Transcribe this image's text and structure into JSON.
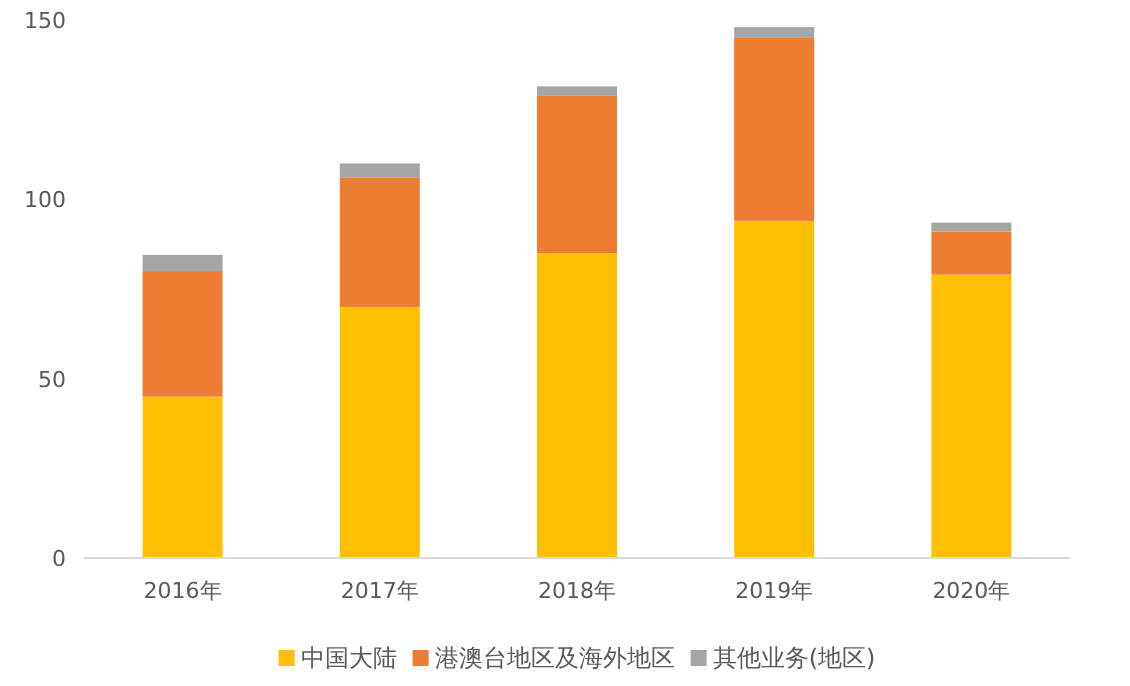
{
  "chart_data": {
    "type": "bar",
    "stacked": true,
    "categories": [
      "2016年",
      "2017年",
      "2018年",
      "2019年",
      "2020年"
    ],
    "series": [
      {
        "name": "中国大陆",
        "color": "#ffc000",
        "values": [
          45,
          70,
          85,
          94,
          79
        ]
      },
      {
        "name": "港澳台地区及海外地区",
        "color": "#ed7d31",
        "values": [
          35,
          36,
          44,
          51,
          12
        ]
      },
      {
        "name": "其他业务(地区)",
        "color": "#a5a5a5",
        "values": [
          4.5,
          4,
          2.5,
          3,
          2.5
        ]
      }
    ],
    "ylim": [
      0,
      150
    ],
    "yticks": [
      0,
      50,
      100,
      150
    ],
    "legend": "bottom"
  }
}
